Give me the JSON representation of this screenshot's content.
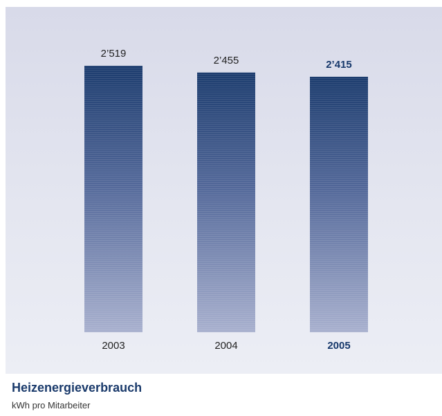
{
  "chart_data": {
    "type": "bar",
    "categories": [
      "2003",
      "2004",
      "2005"
    ],
    "values": [
      2519,
      2455,
      2415
    ],
    "value_labels": [
      "2’519",
      "2’455",
      "2’415"
    ],
    "highlight_index": 2,
    "title": "Heizenergieverbrauch",
    "subtitle": "kWh pro Mitarbeiter",
    "xlabel": "",
    "ylabel": "",
    "ylim": [
      0,
      2519
    ],
    "grid": false,
    "legend": "none",
    "colors": {
      "bar_top": "#1c3c6e",
      "bar_bottom": "#a8b0ce",
      "label": "#222222",
      "highlight_label": "#16386b"
    }
  }
}
